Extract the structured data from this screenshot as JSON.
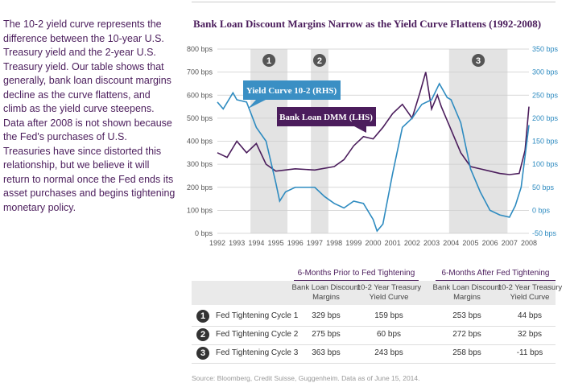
{
  "intro": "The 10-2 yield curve represents the difference between the 10-year U.S. Treasury yield and the 2-year U.S. Treasury yield. Our table shows that generally, bank loan discount margins decline as the curve flattens, and climb as the yield curve steepens. Data after 2008 is not shown because the Fed's purchases of U.S. Treasuries have since distorted this relationship, but we believe it will return to normal once the Fed ends its asset purchases and begins tightening monetary policy.",
  "chart_data": {
    "type": "line",
    "title": "Bank Loan Discount Margins Narrow as the Yield Curve Flattens (1992-2008)",
    "x_ticks": [
      "1992",
      "1993",
      "1994",
      "1995",
      "1996",
      "1997",
      "1998",
      "1999",
      "2000",
      "2001",
      "2002",
      "2003",
      "2004",
      "2005",
      "2006",
      "2007",
      "2008"
    ],
    "y_left": {
      "ticks": [
        "0 bps",
        "100 bps",
        "200 bps",
        "300 bps",
        "400 bps",
        "500 bps",
        "600 bps",
        "700 bps",
        "800 bps"
      ],
      "range": [
        0,
        800
      ]
    },
    "y_right": {
      "ticks": [
        "-50 bps",
        "0 bps",
        "50 bps",
        "100 bps",
        "150 bps",
        "200 bps",
        "250 bps",
        "300 bps",
        "350 bps"
      ],
      "range": [
        -50,
        350
      ]
    },
    "grid": true,
    "shaded_periods": [
      {
        "label": "1",
        "from": 1993.7,
        "to": 1995.6
      },
      {
        "label": "2",
        "from": 1996.8,
        "to": 1997.7
      },
      {
        "label": "3",
        "from": 2003.9,
        "to": 2006.9
      }
    ],
    "series": [
      {
        "name": "Bank Loan DMM (LHS)",
        "axis": "left",
        "color": "#4b1d5c",
        "x": [
          1992,
          1992.5,
          1993,
          1993.5,
          1994,
          1994.5,
          1995,
          1996,
          1997,
          1998,
          1998.5,
          1999,
          1999.5,
          2000,
          2000.5,
          2001,
          2001.5,
          2002,
          2002.4,
          2002.7,
          2003,
          2003.3,
          2003.5,
          2004,
          2004.5,
          2005,
          2005.5,
          2006,
          2006.5,
          2007,
          2007.5,
          2007.8,
          2008
        ],
        "y": [
          350,
          330,
          400,
          350,
          390,
          300,
          270,
          280,
          275,
          290,
          320,
          380,
          420,
          410,
          460,
          520,
          560,
          500,
          610,
          700,
          540,
          600,
          550,
          450,
          350,
          290,
          280,
          270,
          260,
          255,
          260,
          360,
          550
        ]
      },
      {
        "name": "Yield Curve 10-2 (RHS)",
        "axis": "right",
        "color": "#2e8bc0",
        "x": [
          1992,
          1992.3,
          1992.8,
          1993,
          1993.5,
          1994,
          1994.5,
          1995,
          1995.2,
          1995.5,
          1996,
          1997,
          1997.5,
          1998,
          1998.5,
          1999,
          1999.5,
          2000,
          2000.2,
          2000.5,
          2001,
          2001.5,
          2002,
          2002.5,
          2003,
          2003.4,
          2003.8,
          2004,
          2004.5,
          2005,
          2005.5,
          2006,
          2006.5,
          2007,
          2007.3,
          2007.6,
          2008
        ],
        "y": [
          235,
          220,
          255,
          240,
          235,
          180,
          150,
          60,
          20,
          40,
          50,
          50,
          30,
          15,
          5,
          20,
          15,
          -20,
          -45,
          -30,
          80,
          180,
          200,
          230,
          240,
          275,
          245,
          240,
          190,
          90,
          40,
          0,
          -10,
          -15,
          10,
          50,
          185
        ]
      }
    ]
  },
  "table": {
    "group_prior": "6-Months Prior to Fed Tightening",
    "group_after": "6-Months After Fed Tightening",
    "columns": [
      "Bank Loan Discount Margins",
      "10-2 Year Treasury Yield Curve",
      "Bank Loan Discount Margins",
      "10-2 Year Treasury Yield Curve"
    ],
    "rows": [
      {
        "num": "1",
        "label": "Fed Tightening Cycle 1",
        "values": [
          "329 bps",
          "159 bps",
          "253 bps",
          "44 bps"
        ]
      },
      {
        "num": "2",
        "label": "Fed Tightening Cycle 2",
        "values": [
          "275 bps",
          "60 bps",
          "272 bps",
          "32 bps"
        ]
      },
      {
        "num": "3",
        "label": "Fed Tightening Cycle 3",
        "values": [
          "363 bps",
          "243 bps",
          "258 bps",
          "-11 bps"
        ]
      }
    ]
  },
  "source": "Source: Bloomberg, Credit Suisse, Guggenheim. Data as of June 15, 2014."
}
